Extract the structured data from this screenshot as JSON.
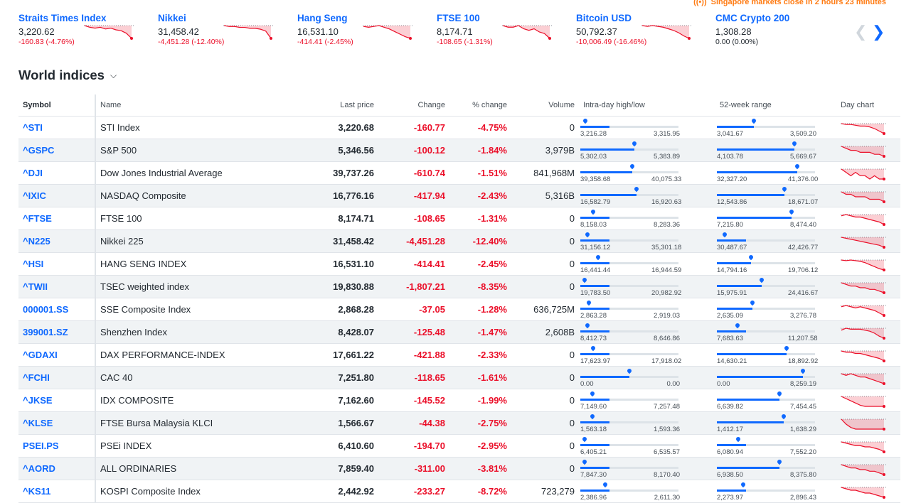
{
  "status": {
    "market_message": "Singapore markets close in 2 hours 23 minutes"
  },
  "tickers": [
    {
      "name": "Straits Times Index",
      "price": "3,220.62",
      "change": "-160.83 (-4.76%)"
    },
    {
      "name": "Nikkei",
      "price": "31,458.42",
      "change": "-4,451.28 (-12.40%)"
    },
    {
      "name": "Hang Seng",
      "price": "16,531.10",
      "change": "-414.41 (-2.45%)"
    },
    {
      "name": "FTSE 100",
      "price": "8,174.71",
      "change": "-108.65 (-1.31%)"
    },
    {
      "name": "Bitcoin USD",
      "price": "50,792.37",
      "change": "-10,006.49 (-16.46%)"
    },
    {
      "name": "CMC Crypto 200",
      "price": "1,308.28",
      "change": "0.00 (0.00%)"
    }
  ],
  "section": {
    "title": "World indices"
  },
  "table": {
    "headers": {
      "symbol": "Symbol",
      "name": "Name",
      "last": "Last price",
      "change": "Change",
      "pct": "% change",
      "volume": "Volume",
      "intraday": "Intra-day high/low",
      "week52": "52-week range",
      "daychart": "Day chart"
    },
    "rows": [
      {
        "symbol": "^STI",
        "name": "STI Index",
        "last": "3,220.68",
        "change": "-160.77",
        "pct": "-4.75%",
        "volume": "0",
        "day_low": "3,216.28",
        "day_high": "3,315.95",
        "day_pos": 0.05,
        "wk_low": "3,041.67",
        "wk_high": "3,509.20",
        "wk_pos": 0.38
      },
      {
        "symbol": "^GSPC",
        "name": "S&P 500",
        "last": "5,346.56",
        "change": "-100.12",
        "pct": "-1.84%",
        "volume": "3,979B",
        "day_low": "5,302.03",
        "day_high": "5,383.89",
        "day_pos": 0.55,
        "wk_low": "4,103.78",
        "wk_high": "5,669.67",
        "wk_pos": 0.79
      },
      {
        "symbol": "^DJI",
        "name": "Dow Jones Industrial Average",
        "last": "39,737.26",
        "change": "-610.74",
        "pct": "-1.51%",
        "volume": "841,968M",
        "day_low": "39,358.68",
        "day_high": "40,075.33",
        "day_pos": 0.53,
        "wk_low": "32,327.20",
        "wk_high": "41,376.00",
        "wk_pos": 0.82
      },
      {
        "symbol": "^IXIC",
        "name": "NASDAQ Composite",
        "last": "16,776.16",
        "change": "-417.94",
        "pct": "-2.43%",
        "volume": "5,316B",
        "day_low": "16,582.79",
        "day_high": "16,920.63",
        "day_pos": 0.57,
        "wk_low": "12,543.86",
        "wk_high": "18,671.07",
        "wk_pos": 0.69
      },
      {
        "symbol": "^FTSE",
        "name": "FTSE 100",
        "last": "8,174.71",
        "change": "-108.65",
        "pct": "-1.31%",
        "volume": "0",
        "day_low": "8,158.03",
        "day_high": "8,283.36",
        "day_pos": 0.13,
        "wk_low": "7,215.80",
        "wk_high": "8,474.40",
        "wk_pos": 0.76
      },
      {
        "symbol": "^N225",
        "name": "Nikkei 225",
        "last": "31,458.42",
        "change": "-4,451.28",
        "pct": "-12.40%",
        "volume": "0",
        "day_low": "31,156.12",
        "day_high": "35,301.18",
        "day_pos": 0.07,
        "wk_low": "30,487.67",
        "wk_high": "42,426.77",
        "wk_pos": 0.08
      },
      {
        "symbol": "^HSI",
        "name": "HANG SENG INDEX",
        "last": "16,531.10",
        "change": "-414.41",
        "pct": "-2.45%",
        "volume": "0",
        "day_low": "16,441.44",
        "day_high": "16,944.59",
        "day_pos": 0.18,
        "wk_low": "14,794.16",
        "wk_high": "19,706.12",
        "wk_pos": 0.35
      },
      {
        "symbol": "^TWII",
        "name": "TSEC weighted index",
        "last": "19,830.88",
        "change": "-1,807.21",
        "pct": "-8.35%",
        "volume": "0",
        "day_low": "19,783.50",
        "day_high": "20,982.92",
        "day_pos": 0.04,
        "wk_low": "15,975.91",
        "wk_high": "24,416.67",
        "wk_pos": 0.46
      },
      {
        "symbol": "000001.SS",
        "name": "SSE Composite Index",
        "last": "2,868.28",
        "change": "-37.05",
        "pct": "-1.28%",
        "volume": "636,725M",
        "day_low": "2,863.28",
        "day_high": "2,919.03",
        "day_pos": 0.09,
        "wk_low": "2,635.09",
        "wk_high": "3,276.78",
        "wk_pos": 0.36
      },
      {
        "symbol": "399001.SZ",
        "name": "Shenzhen Index",
        "last": "8,428.07",
        "change": "-125.48",
        "pct": "-1.47%",
        "volume": "2,608B",
        "day_low": "8,412.73",
        "day_high": "8,646.86",
        "day_pos": 0.07,
        "wk_low": "7,683.63",
        "wk_high": "11,207.58",
        "wk_pos": 0.21
      },
      {
        "symbol": "^GDAXI",
        "name": "DAX PERFORMANCE-INDEX",
        "last": "17,661.22",
        "change": "-421.88",
        "pct": "-2.33%",
        "volume": "0",
        "day_low": "17,623.97",
        "day_high": "17,918.02",
        "day_pos": 0.13,
        "wk_low": "14,630.21",
        "wk_high": "18,892.92",
        "wk_pos": 0.71
      },
      {
        "symbol": "^FCHI",
        "name": "CAC 40",
        "last": "7,251.80",
        "change": "-118.65",
        "pct": "-1.61%",
        "volume": "0",
        "day_low": "0.00",
        "day_high": "0.00",
        "day_pos": 0.5,
        "wk_low": "0.00",
        "wk_high": "8,259.19",
        "wk_pos": 0.88
      },
      {
        "symbol": "^JKSE",
        "name": "IDX COMPOSITE",
        "last": "7,162.60",
        "change": "-145.52",
        "pct": "-1.99%",
        "volume": "0",
        "day_low": "7,149.60",
        "day_high": "7,257.48",
        "day_pos": 0.12,
        "wk_low": "6,639.82",
        "wk_high": "7,454.45",
        "wk_pos": 0.64
      },
      {
        "symbol": "^KLSE",
        "name": "FTSE Bursa Malaysia KLCI",
        "last": "1,566.67",
        "change": "-44.38",
        "pct": "-2.75%",
        "volume": "0",
        "day_low": "1,563.18",
        "day_high": "1,593.36",
        "day_pos": 0.12,
        "wk_low": "1,412.17",
        "wk_high": "1,638.29",
        "wk_pos": 0.68
      },
      {
        "symbol": "PSEI.PS",
        "name": "PSEi INDEX",
        "last": "6,410.60",
        "change": "-194.70",
        "pct": "-2.95%",
        "volume": "0",
        "day_low": "6,405.21",
        "day_high": "6,535.57",
        "day_pos": 0.04,
        "wk_low": "6,080.94",
        "wk_high": "7,552.20",
        "wk_pos": 0.22
      },
      {
        "symbol": "^AORD",
        "name": "ALL ORDINARIES",
        "last": "7,859.40",
        "change": "-311.00",
        "pct": "-3.81%",
        "volume": "0",
        "day_low": "7,847.30",
        "day_high": "8,170.40",
        "day_pos": 0.04,
        "wk_low": "6,938.50",
        "wk_high": "8,375.80",
        "wk_pos": 0.64
      },
      {
        "symbol": "^KS11",
        "name": "KOSPI Composite Index",
        "last": "2,442.92",
        "change": "-233.27",
        "pct": "-8.72%",
        "volume": "723,279",
        "day_low": "2,386.96",
        "day_high": "2,611.30",
        "day_pos": 0.25,
        "wk_low": "2,273.97",
        "wk_high": "2,896.43",
        "wk_pos": 0.27
      }
    ]
  },
  "colors": {
    "accent": "#0f69ff",
    "negative": "#eb0f29",
    "status": "#ff7b12",
    "alt_row": "#f0f3f5"
  }
}
